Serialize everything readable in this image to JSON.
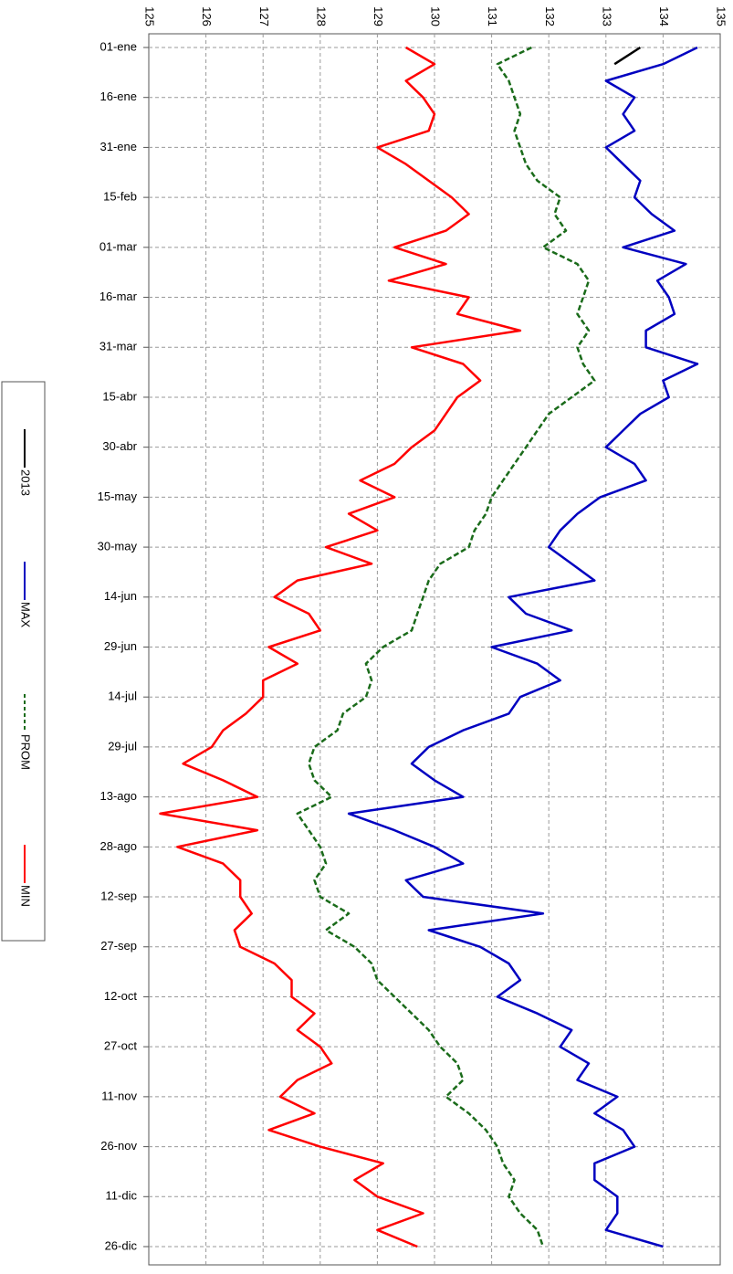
{
  "chart_data": {
    "type": "line",
    "categories": [
      "01-ene",
      null,
      null,
      "16-ene",
      null,
      null,
      "31-ene",
      null,
      null,
      "15-feb",
      null,
      null,
      "01-mar",
      null,
      null,
      "16-mar",
      null,
      null,
      "31-mar",
      null,
      null,
      "15-abr",
      null,
      null,
      "30-abr",
      null,
      null,
      "15-may",
      null,
      null,
      "30-may",
      null,
      null,
      "14-jun",
      null,
      null,
      "29-jun",
      null,
      null,
      "14-jul",
      null,
      null,
      "29-jul",
      null,
      null,
      "13-ago",
      null,
      null,
      "28-ago",
      null,
      null,
      "12-sep",
      null,
      null,
      "27-sep",
      null,
      null,
      "12-oct",
      null,
      null,
      "27-oct",
      null,
      null,
      "11-nov",
      null,
      null,
      "26-nov",
      null,
      null,
      "11-dic",
      null,
      null,
      "26-dic"
    ],
    "series": [
      {
        "name": "2013",
        "color": "#000000",
        "values": [
          133.6,
          133.15,
          null,
          null,
          null,
          null,
          null,
          null,
          null,
          null,
          null,
          null,
          null,
          null,
          null,
          null,
          null,
          null,
          null,
          null,
          null,
          null,
          null,
          null,
          null,
          null,
          null,
          null,
          null,
          null,
          null,
          null,
          null,
          null,
          null,
          null,
          null,
          null,
          null,
          null,
          null,
          null,
          null,
          null,
          null,
          null,
          null,
          null,
          null,
          null,
          null,
          null,
          null,
          null,
          null,
          null,
          null,
          null,
          null,
          null,
          null,
          null,
          null,
          null,
          null,
          null,
          null,
          null,
          null,
          null,
          null,
          null,
          null
        ]
      },
      {
        "name": "MAX",
        "color": "#0000c0",
        "values": [
          134.6,
          134.0,
          133.0,
          133.5,
          133.3,
          133.5,
          133.0,
          133.3,
          133.6,
          133.5,
          133.8,
          134.2,
          133.3,
          134.4,
          133.9,
          134.1,
          134.2,
          133.7,
          133.7,
          134.6,
          134.0,
          134.1,
          133.6,
          133.3,
          133.0,
          133.5,
          133.7,
          132.9,
          132.5,
          132.2,
          132.0,
          132.4,
          132.8,
          131.3,
          131.6,
          132.4,
          131.0,
          131.8,
          132.2,
          131.5,
          131.3,
          130.5,
          129.9,
          129.6,
          130.0,
          130.5,
          128.5,
          129.3,
          130.0,
          130.5,
          129.5,
          129.8,
          131.9,
          129.9,
          130.8,
          131.3,
          131.5,
          131.1,
          131.8,
          132.4,
          132.2,
          132.7,
          132.5,
          133.2,
          132.8,
          133.3,
          133.5,
          132.8,
          132.8,
          133.2,
          133.2,
          133.0,
          134.0
        ]
      },
      {
        "name": "PROM",
        "color": "#1a6b1a",
        "line_style": "dashed",
        "values": [
          131.7,
          131.1,
          131.3,
          131.4,
          131.5,
          131.4,
          131.5,
          131.6,
          131.8,
          132.2,
          132.1,
          132.3,
          131.9,
          132.5,
          132.7,
          132.6,
          132.5,
          132.7,
          132.5,
          132.6,
          132.8,
          132.4,
          132.0,
          131.8,
          131.6,
          131.4,
          131.2,
          131.0,
          130.9,
          130.7,
          130.6,
          130.1,
          129.9,
          129.8,
          129.7,
          129.6,
          129.1,
          128.8,
          128.9,
          128.8,
          128.4,
          128.3,
          127.9,
          127.8,
          127.9,
          128.2,
          127.6,
          127.8,
          128.0,
          128.1,
          127.9,
          128.0,
          128.5,
          128.1,
          128.6,
          128.9,
          129.0,
          129.3,
          129.6,
          129.9,
          130.1,
          130.4,
          130.5,
          130.2,
          130.6,
          130.9,
          131.1,
          131.2,
          131.4,
          131.3,
          131.5,
          131.8,
          131.9
        ]
      },
      {
        "name": "MIN",
        "color": "#ff0000",
        "values": [
          129.5,
          130.0,
          129.5,
          129.8,
          130.0,
          129.9,
          129.0,
          129.5,
          129.9,
          130.3,
          130.6,
          130.2,
          129.3,
          130.2,
          129.2,
          130.6,
          130.4,
          131.5,
          129.6,
          130.5,
          130.8,
          130.4,
          130.2,
          130.0,
          129.6,
          129.3,
          128.7,
          129.3,
          128.5,
          129.0,
          128.1,
          128.9,
          127.6,
          127.2,
          127.8,
          128.0,
          127.1,
          127.6,
          127.0,
          127.0,
          126.7,
          126.3,
          126.1,
          125.6,
          126.3,
          126.9,
          125.2,
          126.9,
          125.5,
          126.3,
          126.6,
          126.6,
          126.8,
          126.5,
          126.6,
          127.2,
          127.5,
          127.5,
          127.9,
          127.6,
          128.0,
          128.2,
          127.6,
          127.3,
          127.9,
          127.1,
          128.0,
          129.1,
          128.6,
          129.0,
          129.8,
          129.0,
          129.7
        ]
      }
    ],
    "ylim": [
      125,
      135
    ],
    "yticks": [
      125,
      126,
      127,
      128,
      129,
      130,
      131,
      132,
      133,
      134,
      135
    ],
    "grid": true,
    "legend": "left"
  }
}
